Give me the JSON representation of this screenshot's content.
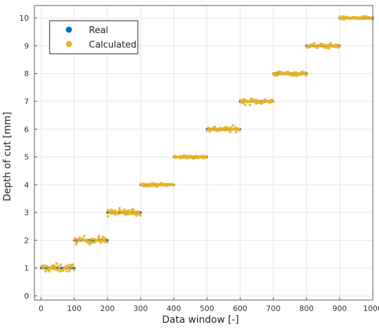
{
  "chart_data": {
    "type": "scatter",
    "title": "",
    "xlabel": "Data window [-]",
    "ylabel": "Depth of cut [mm]",
    "xlim": [
      -20,
      1000
    ],
    "ylim": [
      -0.15,
      10.45
    ],
    "x_ticks": [
      0,
      100,
      200,
      300,
      400,
      500,
      600,
      700,
      800,
      900,
      1000
    ],
    "y_ticks": [
      0,
      1,
      2,
      3,
      4,
      5,
      6,
      7,
      8,
      9,
      10
    ],
    "grid": true,
    "legend": {
      "placement": "top-left"
    },
    "series": [
      {
        "name": "Real",
        "color": "#0072BD",
        "segments": [
          {
            "x": [
              0,
              100
            ],
            "y": 1
          },
          {
            "x": [
              100,
              200
            ],
            "y": 2
          },
          {
            "x": [
              200,
              300
            ],
            "y": 3
          },
          {
            "x": [
              300,
              400
            ],
            "y": 4
          },
          {
            "x": [
              400,
              500
            ],
            "y": 5
          },
          {
            "x": [
              500,
              600
            ],
            "y": 6
          },
          {
            "x": [
              600,
              700
            ],
            "y": 7
          },
          {
            "x": [
              700,
              800
            ],
            "y": 8
          },
          {
            "x": [
              800,
              900
            ],
            "y": 9
          },
          {
            "x": [
              900,
              1000
            ],
            "y": 10
          }
        ]
      },
      {
        "name": "Calculated",
        "color": "#EDB120",
        "groups": [
          {
            "x": [
              0,
              100
            ],
            "mean": 1.0,
            "spread": 0.13
          },
          {
            "x": [
              100,
              200
            ],
            "mean": 2.0,
            "spread": 0.12
          },
          {
            "x": [
              200,
              300
            ],
            "mean": 3.0,
            "spread": 0.12
          },
          {
            "x": [
              300,
              400
            ],
            "mean": 4.0,
            "spread": 0.05
          },
          {
            "x": [
              400,
              500
            ],
            "mean": 5.0,
            "spread": 0.05
          },
          {
            "x": [
              500,
              600
            ],
            "mean": 6.0,
            "spread": 0.09
          },
          {
            "x": [
              600,
              700
            ],
            "mean": 7.0,
            "spread": 0.09
          },
          {
            "x": [
              700,
              800
            ],
            "mean": 8.0,
            "spread": 0.07
          },
          {
            "x": [
              800,
              900
            ],
            "mean": 9.0,
            "spread": 0.08
          },
          {
            "x": [
              900,
              1000
            ],
            "mean": 10.0,
            "spread": 0.05
          }
        ]
      }
    ]
  }
}
